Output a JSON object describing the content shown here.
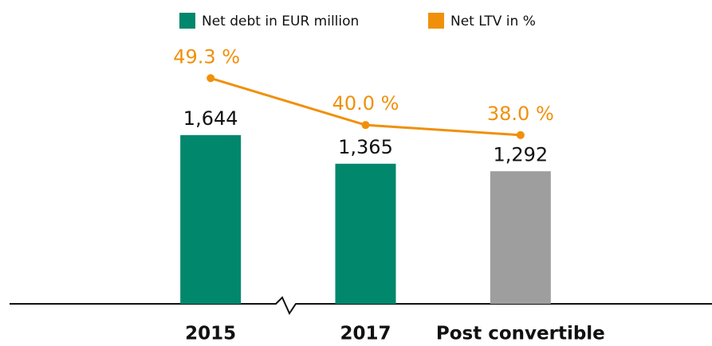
{
  "chart_data": {
    "type": "bar-line",
    "categories": [
      "2015",
      "2017",
      "Post convertible"
    ],
    "series": [
      {
        "name": "Net debt in EUR million",
        "color": "#00876c",
        "colors": [
          "#00876c",
          "#00876c",
          "#9e9e9e"
        ],
        "values": [
          1644,
          1365,
          1292
        ],
        "value_labels": [
          "1,644",
          "1,365",
          "1,292"
        ]
      },
      {
        "name": "Net LTV in %",
        "color": "#f0900a",
        "axis": "y2",
        "values": [
          49.3,
          40.0,
          38.0
        ],
        "value_labels": [
          "49.3 %",
          "40.0 %",
          "38.0 %"
        ]
      }
    ],
    "ylim": [
      0,
      2650
    ],
    "y2lim": [
      4.5,
      58.5
    ],
    "legend": "top"
  }
}
